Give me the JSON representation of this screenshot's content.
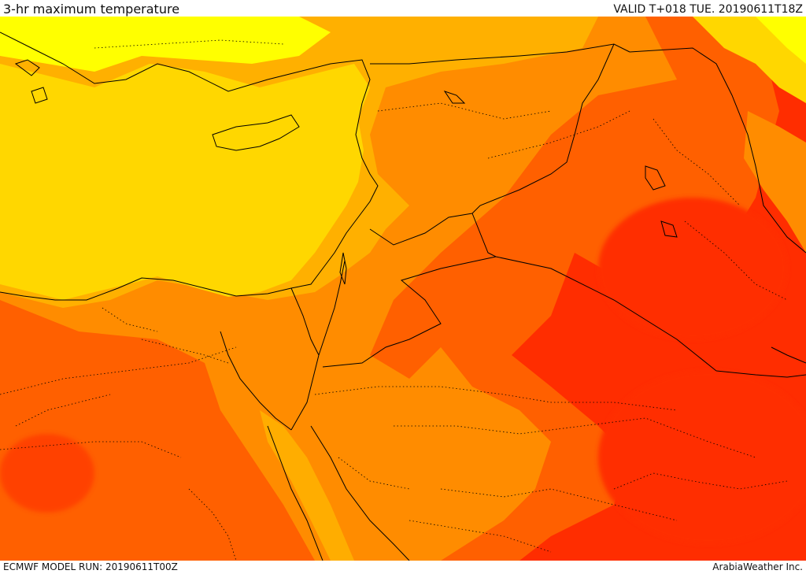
{
  "header": {
    "title": "3-hr maximum temperature",
    "valid": "VALID T+018 TUE. 20190611T18Z"
  },
  "footer": {
    "model_run": "ECMWF MODEL RUN: 20190611T00Z",
    "credit": "ArabiaWeather Inc."
  },
  "map": {
    "field": "3-hr maximum temperature",
    "palette": [
      "#ffff00",
      "#ffd700",
      "#ffb000",
      "#ff8c00",
      "#ff6000",
      "#ff2d00"
    ],
    "coastline_color": "#000000",
    "border_color": "#000000",
    "internal_boundary_style": "dotted"
  }
}
